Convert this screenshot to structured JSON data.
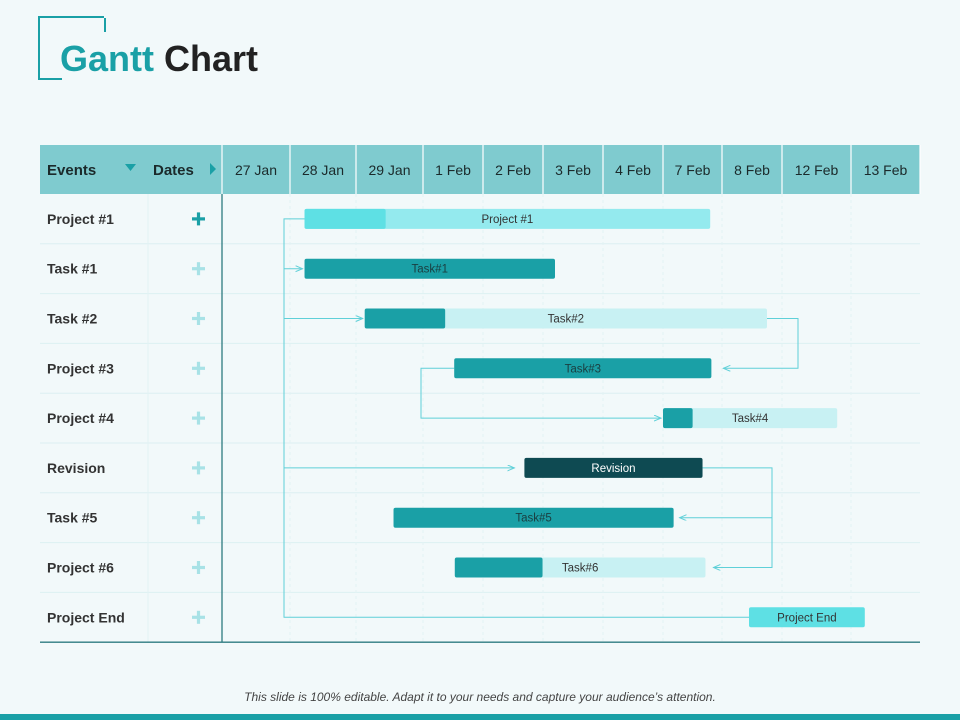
{
  "title": {
    "part1": "Gantt",
    "part2": "Chart"
  },
  "header": {
    "events_label": "Events",
    "dates_label": "Dates"
  },
  "dates": [
    "27 Jan",
    "28 Jan",
    "29 Jan",
    "1 Feb",
    "2 Feb",
    "3 Feb",
    "4 Feb",
    "7 Feb",
    "8 Feb",
    "12 Feb",
    "13 Feb"
  ],
  "rows": [
    {
      "label": "Project #1",
      "icon": "plus-icon",
      "emphasized": true
    },
    {
      "label": "Task #1",
      "icon": "plus-icon",
      "emphasized": false
    },
    {
      "label": "Task #2",
      "icon": "plus-icon",
      "emphasized": false
    },
    {
      "label": "Project #3",
      "icon": "plus-icon",
      "emphasized": false
    },
    {
      "label": "Project #4",
      "icon": "plus-icon",
      "emphasized": false
    },
    {
      "label": "Revision",
      "icon": "plus-icon",
      "emphasized": false
    },
    {
      "label": "Task #5",
      "icon": "plus-icon",
      "emphasized": false
    },
    {
      "label": "Project #6",
      "icon": "plus-icon",
      "emphasized": false
    },
    {
      "label": "Project End",
      "icon": "plus-icon",
      "emphasized": false
    }
  ],
  "bars": [
    {
      "row": 0,
      "label": "Project #1",
      "start": 1.22,
      "end": 7.8,
      "progress": 0.2,
      "fill": "#5ee0e4",
      "track": "#94eaee",
      "text_color": "#333333"
    },
    {
      "row": 1,
      "label": "Task#1",
      "start": 1.22,
      "end": 5.2,
      "progress": 1.0,
      "fill": "#1aa0a6",
      "track": "#1aa0a6",
      "text_color": "#1a3e40"
    },
    {
      "row": 2,
      "label": "Task#2",
      "start": 2.13,
      "end": 8.75,
      "progress": 0.2,
      "fill": "#1aa0a6",
      "track": "#c8f1f3",
      "text_color": "#333333"
    },
    {
      "row": 3,
      "label": "Task#3",
      "start": 3.52,
      "end": 7.82,
      "progress": 1.0,
      "fill": "#1aa0a6",
      "track": "#1aa0a6",
      "text_color": "#1a3e40"
    },
    {
      "row": 4,
      "label": "Task#4",
      "start": 7.0,
      "end": 9.8,
      "progress": 0.17,
      "fill": "#1aa0a6",
      "track": "#c8f1f3",
      "text_color": "#333333"
    },
    {
      "row": 5,
      "label": "Revision",
      "start": 4.69,
      "end": 7.67,
      "progress": 1.0,
      "fill": "#0e4a52",
      "track": "#0e4a52",
      "text_color": "#ffffff"
    },
    {
      "row": 6,
      "label": "Task#5",
      "start": 2.56,
      "end": 7.18,
      "progress": 1.0,
      "fill": "#1aa0a6",
      "track": "#1aa0a6",
      "text_color": "#1a3e40"
    },
    {
      "row": 7,
      "label": "Task#6",
      "start": 3.53,
      "end": 7.72,
      "progress": 0.35,
      "fill": "#1aa0a6",
      "track": "#c8f1f3",
      "text_color": "#333333"
    },
    {
      "row": 8,
      "label": "Project End",
      "start": 8.45,
      "end": 10.2,
      "progress": 1.0,
      "fill": "#5ee0e4",
      "track": "#5ee0e4",
      "text_color": "#333333"
    }
  ],
  "colors": {
    "header_bg": "#7fcbcf",
    "accent": "#1aa0a6",
    "plus_dim": "#a8e2e6",
    "connector": "#5fd0d8"
  },
  "footer": "This slide is 100% editable. Adapt it to your needs and capture your audience’s attention."
}
